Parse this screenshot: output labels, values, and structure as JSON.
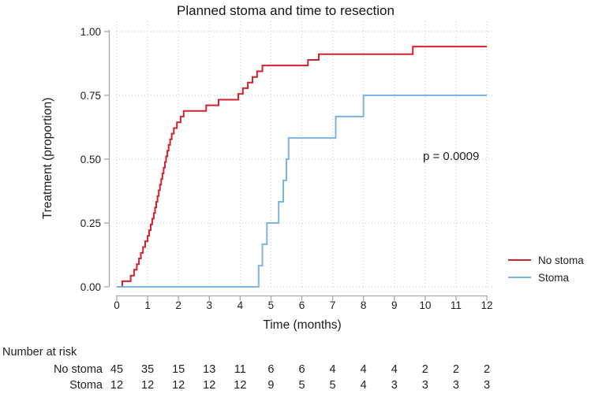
{
  "title": "Planned stoma and time to resection",
  "annotation": "p = 0.0009",
  "axes": {
    "x_title": "Time (months)",
    "y_title": "Treatment (proportion)"
  },
  "legend": {
    "items": [
      {
        "label": "No stoma",
        "color": "#d2212f"
      },
      {
        "label": "Stoma",
        "color": "#7db3e0"
      }
    ]
  },
  "risk_table": {
    "header": "Number at risk",
    "rows": [
      {
        "label": "No stoma",
        "values": [
          "45",
          "35",
          "15",
          "13",
          "11",
          "6",
          "6",
          "4",
          "4",
          "4",
          "2",
          "2",
          "2"
        ]
      },
      {
        "label": "Stoma",
        "values": [
          "12",
          "12",
          "12",
          "12",
          "12",
          "9",
          "5",
          "5",
          "4",
          "3",
          "3",
          "3",
          "3"
        ]
      }
    ]
  },
  "chart_data": {
    "type": "line",
    "subtype": "kaplan-meier-step",
    "title": "Planned stoma and time to resection",
    "xlabel": "Time (months)",
    "ylabel": "Treatment (proportion)",
    "xlim": [
      0,
      12
    ],
    "ylim": [
      0,
      1
    ],
    "xticks": [
      0,
      1,
      2,
      3,
      4,
      5,
      6,
      7,
      8,
      9,
      10,
      11,
      12
    ],
    "yticks": [
      0,
      0.25,
      0.5,
      0.75,
      1
    ],
    "ytick_labels": [
      "0.00",
      "0.25",
      "0.50",
      "0.75",
      "1.00"
    ],
    "grid": true,
    "grid_style": "dotted",
    "legend_position": "right-outside",
    "annotation": {
      "text": "p = 0.0009",
      "x": 11.05,
      "y": 0.5
    },
    "series": [
      {
        "name": "No stoma",
        "color": "#d2212f",
        "step": true,
        "points": [
          [
            0,
            0
          ],
          [
            0.18,
            0.022
          ],
          [
            0.45,
            0.044
          ],
          [
            0.56,
            0.067
          ],
          [
            0.65,
            0.089
          ],
          [
            0.72,
            0.111
          ],
          [
            0.78,
            0.133
          ],
          [
            0.85,
            0.156
          ],
          [
            0.92,
            0.178
          ],
          [
            1.0,
            0.2
          ],
          [
            1.05,
            0.222
          ],
          [
            1.1,
            0.244
          ],
          [
            1.15,
            0.267
          ],
          [
            1.2,
            0.289
          ],
          [
            1.24,
            0.311
          ],
          [
            1.28,
            0.333
          ],
          [
            1.32,
            0.356
          ],
          [
            1.36,
            0.378
          ],
          [
            1.4,
            0.4
          ],
          [
            1.44,
            0.422
          ],
          [
            1.48,
            0.444
          ],
          [
            1.52,
            0.467
          ],
          [
            1.56,
            0.489
          ],
          [
            1.6,
            0.511
          ],
          [
            1.64,
            0.533
          ],
          [
            1.68,
            0.556
          ],
          [
            1.73,
            0.578
          ],
          [
            1.78,
            0.6
          ],
          [
            1.85,
            0.622
          ],
          [
            1.95,
            0.644
          ],
          [
            2.07,
            0.667
          ],
          [
            2.17,
            0.689
          ],
          [
            2.9,
            0.711
          ],
          [
            3.3,
            0.733
          ],
          [
            3.94,
            0.756
          ],
          [
            4.09,
            0.778
          ],
          [
            4.25,
            0.8
          ],
          [
            4.4,
            0.822
          ],
          [
            4.55,
            0.844
          ],
          [
            4.72,
            0.867
          ],
          [
            6.2,
            0.889
          ],
          [
            6.55,
            0.911
          ],
          [
            9.6,
            0.941
          ],
          [
            12,
            0.941
          ]
        ]
      },
      {
        "name": "Stoma",
        "color": "#7db3e0",
        "step": true,
        "points": [
          [
            0,
            0
          ],
          [
            4.6,
            0.083
          ],
          [
            4.72,
            0.167
          ],
          [
            4.87,
            0.25
          ],
          [
            5.25,
            0.333
          ],
          [
            5.4,
            0.417
          ],
          [
            5.5,
            0.5
          ],
          [
            5.57,
            0.583
          ],
          [
            7.1,
            0.667
          ],
          [
            8.0,
            0.75
          ],
          [
            12,
            0.75
          ]
        ]
      }
    ],
    "number_at_risk": {
      "times": [
        0,
        1,
        2,
        3,
        4,
        5,
        6,
        7,
        8,
        9,
        10,
        11,
        12
      ],
      "groups": [
        {
          "name": "No stoma",
          "counts": [
            45,
            35,
            15,
            13,
            11,
            6,
            6,
            4,
            4,
            4,
            2,
            2,
            2
          ]
        },
        {
          "name": "Stoma",
          "counts": [
            12,
            12,
            12,
            12,
            12,
            9,
            5,
            5,
            4,
            3,
            3,
            3,
            3
          ]
        }
      ]
    }
  }
}
